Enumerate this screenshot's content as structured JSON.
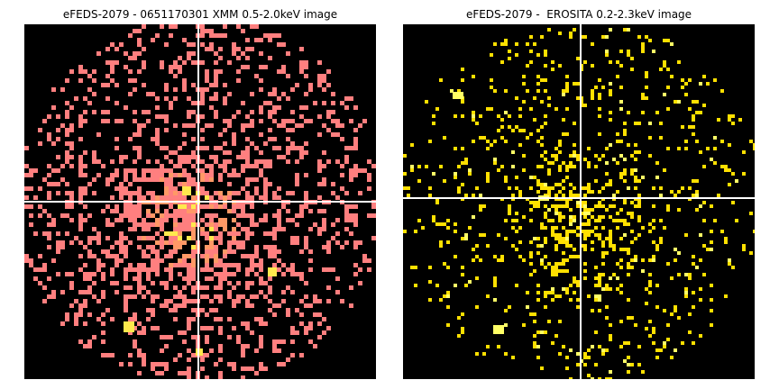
{
  "panels": [
    {
      "title": "eFEDS-2079 - 0651170301 XMM 0.5-2.0keV image",
      "colormap": {
        "low": "#ff7f7f",
        "mid": "#ff9966",
        "high": "#ffe94d"
      },
      "background": "#000000",
      "crosshair_color": "#ffffff"
    },
    {
      "title": "eFEDS-2079 -  EROSITA 0.2-2.3keV image",
      "colormap": {
        "low": "#ffe000",
        "high": "#ffff66"
      },
      "background": "#000000",
      "crosshair_color": "#ffffff"
    }
  ]
}
